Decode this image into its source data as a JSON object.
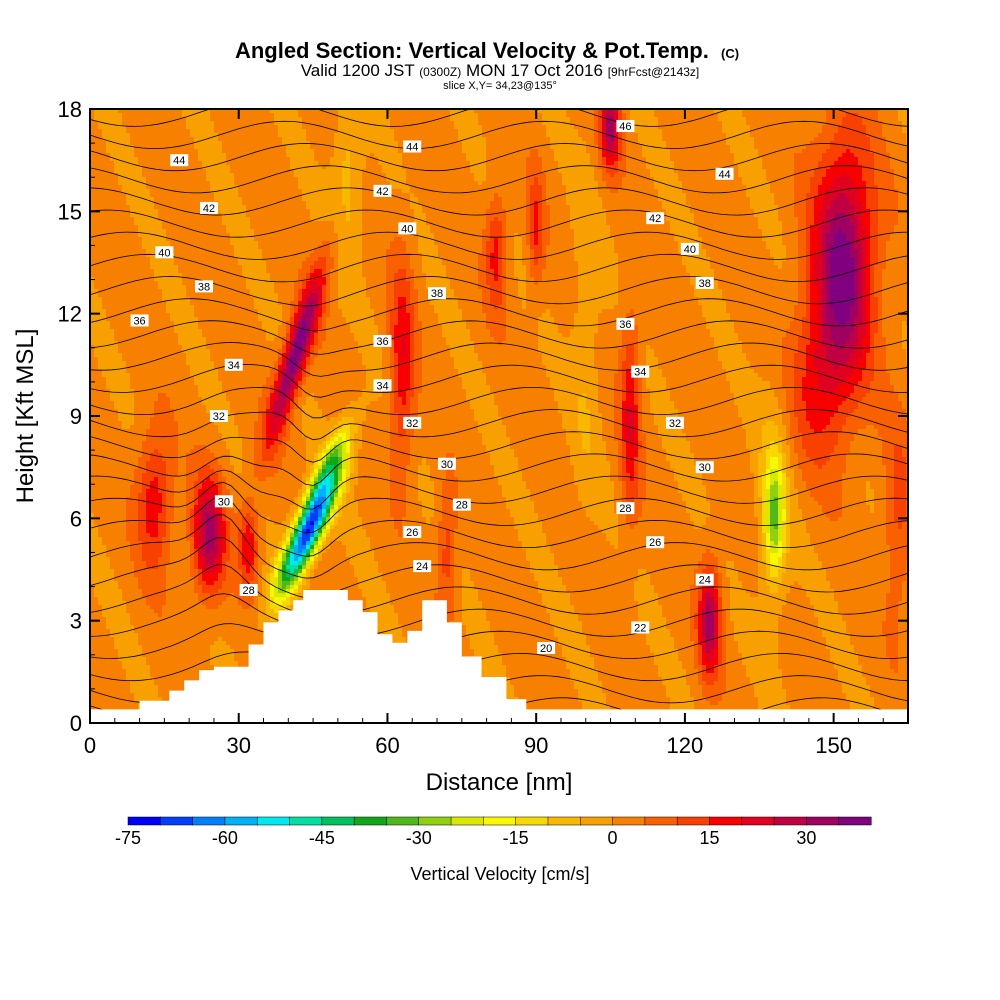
{
  "chart_data": {
    "type": "heatmap",
    "title": "Angled Section: Vertical Velocity & Pot.Temp.",
    "title_mark": "(C)",
    "subtitle_parts": [
      "Valid 1200 JST",
      "(0300Z)",
      "MON 17 Oct 2016",
      "[9hrFcst@2143z]"
    ],
    "subtitle2": "slice X,Y= 34,23@135°",
    "xlabel": "Distance [nm]",
    "ylabel": "Height [Kft MSL]",
    "xlim": [
      0,
      165
    ],
    "ylim": [
      0,
      18
    ],
    "x_ticks": [
      0,
      30,
      60,
      90,
      120,
      150
    ],
    "y_ticks": [
      0,
      3,
      6,
      9,
      12,
      15,
      18
    ],
    "colorbar": {
      "label": "Vertical Velocity [cm/s]",
      "ticks": [
        -75,
        -60,
        -45,
        -30,
        -15,
        0,
        15,
        30
      ],
      "min": -75,
      "max": 40,
      "step": 5,
      "colors": [
        "#0000f8",
        "#0040f8",
        "#0080f8",
        "#00b0f8",
        "#00e8f0",
        "#00e0a0",
        "#00c060",
        "#10a818",
        "#50b818",
        "#90d010",
        "#d8e800",
        "#f8f800",
        "#f8d800",
        "#f8b800",
        "#f8a000",
        "#f88000",
        "#f86000",
        "#f84000",
        "#f80000",
        "#e00020",
        "#c00040",
        "#a00060",
        "#800080"
      ]
    },
    "terrain_kft": [
      [
        0,
        0.4
      ],
      [
        10,
        0.4
      ],
      [
        10,
        0.65
      ],
      [
        16,
        0.65
      ],
      [
        16,
        0.95
      ],
      [
        19,
        0.95
      ],
      [
        19,
        1.25
      ],
      [
        22,
        1.25
      ],
      [
        22,
        1.55
      ],
      [
        25,
        1.55
      ],
      [
        25,
        1.65
      ],
      [
        32,
        1.65
      ],
      [
        32,
        2.3
      ],
      [
        35,
        2.3
      ],
      [
        35,
        2.95
      ],
      [
        38,
        2.95
      ],
      [
        38,
        3.3
      ],
      [
        41,
        3.3
      ],
      [
        41,
        3.6
      ],
      [
        43,
        3.6
      ],
      [
        43,
        3.9
      ],
      [
        52,
        3.9
      ],
      [
        52,
        3.6
      ],
      [
        55,
        3.6
      ],
      [
        55,
        3.25
      ],
      [
        58,
        3.25
      ],
      [
        58,
        2.6
      ],
      [
        61,
        2.6
      ],
      [
        61,
        2.35
      ],
      [
        64,
        2.35
      ],
      [
        64,
        2.7
      ],
      [
        67,
        2.7
      ],
      [
        67,
        3.6
      ],
      [
        72,
        3.6
      ],
      [
        72,
        2.95
      ],
      [
        75,
        2.95
      ],
      [
        75,
        1.95
      ],
      [
        79,
        1.95
      ],
      [
        79,
        1.35
      ],
      [
        84,
        1.35
      ],
      [
        84,
        0.7
      ],
      [
        88,
        0.7
      ],
      [
        88,
        0.4
      ],
      [
        165,
        0.4
      ]
    ],
    "velocity_features": [
      {
        "x": 44,
        "z": 5.6,
        "sx": 3.0,
        "sz": 1.7,
        "tilt": 3,
        "w": -72
      },
      {
        "x": 48,
        "z": 7.5,
        "sx": 2.6,
        "sz": 1.4,
        "tilt": 3,
        "w": -25
      },
      {
        "x": 41.5,
        "z": 10.8,
        "sx": 2.6,
        "sz": 2.5,
        "tilt": 2,
        "w": 38
      },
      {
        "x": 24,
        "z": 5.5,
        "sx": 3.2,
        "sz": 1.7,
        "tilt": 0,
        "w": 30
      },
      {
        "x": 13,
        "z": 6.5,
        "sx": 3.5,
        "sz": 2.0,
        "tilt": 0,
        "w": 18
      },
      {
        "x": 32,
        "z": 5.2,
        "sx": 2.0,
        "sz": 1.2,
        "tilt": 0,
        "w": 18
      },
      {
        "x": 63,
        "z": 10.5,
        "sx": 2.5,
        "sz": 3.0,
        "tilt": 0,
        "w": 18
      },
      {
        "x": 82,
        "z": 13.8,
        "sx": 2.2,
        "sz": 1.7,
        "tilt": 0,
        "w": 16
      },
      {
        "x": 90,
        "z": 14.5,
        "sx": 1.6,
        "sz": 1.7,
        "tilt": 0,
        "w": 14
      },
      {
        "x": 105,
        "z": 17.5,
        "sx": 2.0,
        "sz": 1.2,
        "tilt": 0,
        "w": 30
      },
      {
        "x": 109,
        "z": 9.0,
        "sx": 2.0,
        "sz": 3.0,
        "tilt": 0,
        "w": 18
      },
      {
        "x": 125,
        "z": 3.0,
        "sx": 2.2,
        "sz": 1.6,
        "tilt": 0,
        "w": 30
      },
      {
        "x": 152,
        "z": 13.5,
        "sx": 6.0,
        "sz": 3.5,
        "tilt": 0,
        "w": 36
      },
      {
        "x": 147,
        "z": 10.0,
        "sx": 6.0,
        "sz": 2.5,
        "tilt": 0,
        "w": 14
      },
      {
        "x": 138,
        "z": 6.0,
        "sx": 1.9,
        "sz": 1.6,
        "tilt": 0,
        "w": -25
      },
      {
        "x": 138,
        "z": 6.5,
        "sx": 3.5,
        "sz": 3.5,
        "tilt": 0,
        "w": -9
      },
      {
        "x": 52,
        "z": 16.0,
        "sx": 3.0,
        "sz": 2.5,
        "tilt": 0,
        "w": -10
      },
      {
        "x": 100,
        "z": 11.0,
        "sx": 3.0,
        "sz": 5.0,
        "tilt": 0,
        "w": -6
      },
      {
        "x": 163,
        "z": 6.0,
        "sx": 3.0,
        "sz": 3.0,
        "tilt": 0,
        "w": 10
      },
      {
        "x": 72,
        "z": 5.0,
        "sx": 2.0,
        "sz": 2.0,
        "tilt": 0,
        "w": 12
      }
    ],
    "theta_contours": {
      "min": 18,
      "max": 47,
      "step": 1
    },
    "contour_labels": [
      {
        "text": "46",
        "x": 108,
        "z": 17.5
      },
      {
        "text": "44",
        "x": 18,
        "z": 16.5
      },
      {
        "text": "44",
        "x": 65,
        "z": 16.9
      },
      {
        "text": "44",
        "x": 128,
        "z": 16.1
      },
      {
        "text": "42",
        "x": 24,
        "z": 15.1
      },
      {
        "text": "42",
        "x": 59,
        "z": 15.6
      },
      {
        "text": "42",
        "x": 114,
        "z": 14.8
      },
      {
        "text": "40",
        "x": 15,
        "z": 13.8
      },
      {
        "text": "40",
        "x": 64,
        "z": 14.5
      },
      {
        "text": "40",
        "x": 121,
        "z": 13.9
      },
      {
        "text": "38",
        "x": 23,
        "z": 12.8
      },
      {
        "text": "38",
        "x": 70,
        "z": 12.6
      },
      {
        "text": "38",
        "x": 124,
        "z": 12.9
      },
      {
        "text": "36",
        "x": 10,
        "z": 11.8
      },
      {
        "text": "36",
        "x": 59,
        "z": 11.2
      },
      {
        "text": "36",
        "x": 108,
        "z": 11.7
      },
      {
        "text": "34",
        "x": 29,
        "z": 10.5
      },
      {
        "text": "34",
        "x": 59,
        "z": 9.9
      },
      {
        "text": "34",
        "x": 111,
        "z": 10.3
      },
      {
        "text": "32",
        "x": 26,
        "z": 9.0
      },
      {
        "text": "32",
        "x": 65,
        "z": 8.8
      },
      {
        "text": "32",
        "x": 118,
        "z": 8.8
      },
      {
        "text": "30",
        "x": 27,
        "z": 6.5
      },
      {
        "text": "30",
        "x": 72,
        "z": 7.6
      },
      {
        "text": "30",
        "x": 124,
        "z": 7.5
      },
      {
        "text": "28",
        "x": 32,
        "z": 3.9
      },
      {
        "text": "28",
        "x": 75,
        "z": 6.4
      },
      {
        "text": "28",
        "x": 108,
        "z": 6.3
      },
      {
        "text": "26",
        "x": 65,
        "z": 5.6
      },
      {
        "text": "26",
        "x": 114,
        "z": 5.3
      },
      {
        "text": "24",
        "x": 67,
        "z": 4.6
      },
      {
        "text": "24",
        "x": 124,
        "z": 4.2
      },
      {
        "text": "22",
        "x": 111,
        "z": 2.8
      },
      {
        "text": "20",
        "x": 92,
        "z": 2.2
      }
    ]
  }
}
